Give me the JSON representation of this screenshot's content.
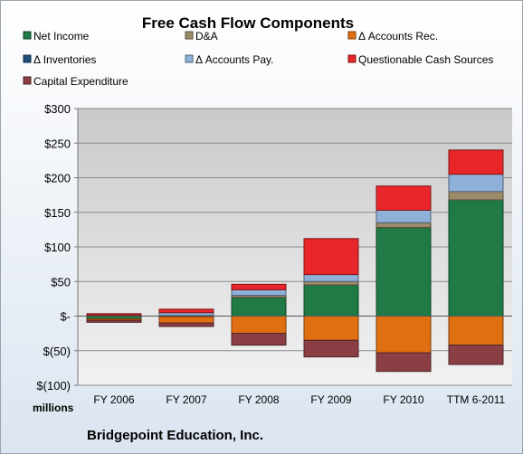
{
  "chart_data": {
    "type": "bar",
    "stacked": true,
    "title": "Free Cash Flow Components",
    "company": "Bridgepoint Education, Inc.",
    "unit_label": "millions",
    "categories": [
      "FY 2006",
      "FY 2007",
      "FY 2008",
      "FY 2009",
      "FY 2010",
      "TTM 6-2011"
    ],
    "ylim": [
      -100,
      300
    ],
    "yticks": [
      -100,
      -50,
      0,
      50,
      100,
      150,
      200,
      250,
      300
    ],
    "ytick_labels": [
      "$(100)",
      "$(50)",
      "$-",
      "$50",
      "$100",
      "$150",
      "$200",
      "$250",
      "$300"
    ],
    "grid": true,
    "legend_position": "top",
    "series": [
      {
        "name": "Net Income",
        "color": "#1f7a45",
        "values": [
          -4,
          -1,
          27,
          45,
          128,
          168
        ]
      },
      {
        "name": "D&A",
        "color": "#9c8b6b",
        "values": [
          0.5,
          1,
          3,
          5,
          7,
          12
        ]
      },
      {
        "name": "Δ Accounts Rec.",
        "color": "#e06f12",
        "values": [
          -2,
          -9,
          -25,
          -35,
          -53,
          -42
        ]
      },
      {
        "name": "Δ Inventories",
        "color": "#1f4e79",
        "values": [
          0,
          0,
          0,
          0,
          0,
          0
        ]
      },
      {
        "name": "Δ Accounts Pay.",
        "color": "#8fb0d9",
        "values": [
          1,
          4,
          8,
          10,
          18,
          25
        ]
      },
      {
        "name": "Questionable Cash Sources",
        "color": "#e8262a",
        "values": [
          2,
          5,
          8,
          52,
          35,
          35
        ]
      },
      {
        "name": "Capital Expenditure",
        "color": "#8b3f45",
        "values": [
          -3,
          -5,
          -17,
          -24,
          -27,
          -28
        ]
      }
    ]
  }
}
